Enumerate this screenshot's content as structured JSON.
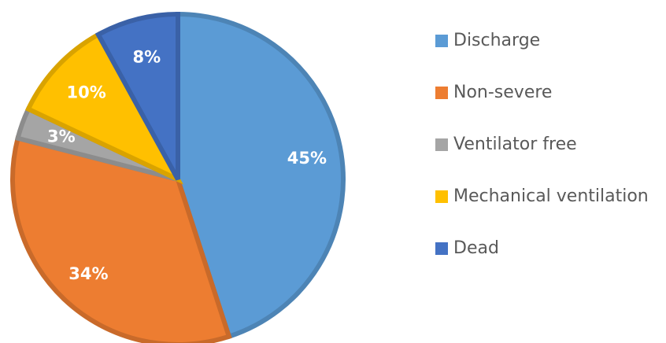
{
  "chart_data": {
    "type": "pie",
    "categories": [
      "Discharge",
      "Non-severe",
      "Ventilator free",
      "Mechanical ventilation",
      "Dead"
    ],
    "values": [
      45,
      34,
      3,
      10,
      8
    ],
    "value_labels": [
      "45%",
      "34%",
      "3%",
      "10%",
      "8%"
    ],
    "colors": [
      "#5b9bd5",
      "#ed7d31",
      "#a5a5a5",
      "#ffc000",
      "#4472c4"
    ],
    "legend": "right"
  }
}
